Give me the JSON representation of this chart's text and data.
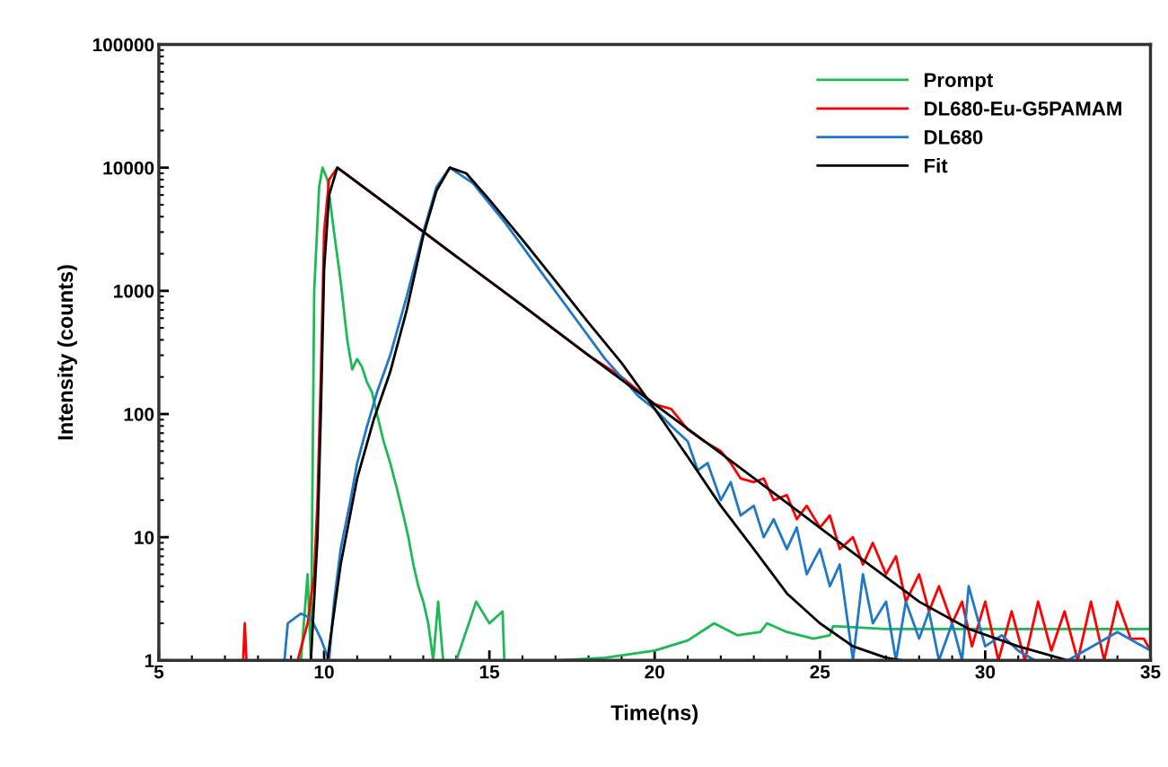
{
  "chart_data": {
    "type": "line",
    "xlabel": "Time(ns)",
    "ylabel": "Intensity (counts)",
    "log": "y",
    "xlim": [
      5,
      35
    ],
    "ylim": [
      1,
      100000
    ],
    "xticks": [
      5,
      10,
      15,
      20,
      25,
      30,
      35
    ],
    "yticks": [
      1,
      10,
      100,
      1000,
      10000,
      100000
    ],
    "grid": false,
    "legend": "top right",
    "marker": "none",
    "line_style": "solid",
    "series": [
      {
        "name": "Prompt",
        "color": "#1db954",
        "x": [
          5,
          9.3,
          9.5,
          9.6,
          9.7,
          9.85,
          9.95,
          10.1,
          10.3,
          10.5,
          10.7,
          10.85,
          11.0,
          11.15,
          11.3,
          11.45,
          11.6,
          11.8,
          12.0,
          12.2,
          12.4,
          12.55,
          12.7,
          12.85,
          13.0,
          13.15,
          13.3,
          13.45,
          13.6,
          14.0,
          14.6,
          15.0,
          15.4,
          15.45,
          17.0,
          18.5,
          20.0,
          21.0,
          21.8,
          22.5,
          23.2,
          23.4,
          24.0,
          24.8,
          25.3,
          25.4,
          27.0,
          30.0,
          35.0
        ],
        "values": [
          1,
          1,
          5,
          1,
          1000,
          7000,
          10000,
          8000,
          3000,
          1200,
          400,
          230,
          280,
          240,
          180,
          150,
          100,
          60,
          40,
          25,
          15,
          10,
          6,
          4,
          3,
          2,
          1,
          3,
          1,
          1,
          3,
          2,
          2.5,
          1,
          1,
          1.05,
          1.2,
          1.45,
          2,
          1.6,
          1.7,
          2,
          1.7,
          1.5,
          1.6,
          1.9,
          1.8,
          1.8,
          1.8
        ]
      },
      {
        "name": "DL680-Eu-G5PAMAM",
        "color": "#ff0000",
        "x": [
          5,
          7.55,
          7.6,
          7.65,
          9.2,
          9.5,
          9.7,
          9.8,
          9.9,
          10.0,
          10.15,
          10.4,
          12.0,
          14.0,
          16.0,
          18.0,
          19.0,
          20.0,
          20.5,
          21.0,
          21.5,
          22.0,
          22.3,
          22.6,
          23.0,
          23.3,
          23.6,
          24.0,
          24.3,
          24.6,
          25.0,
          25.3,
          25.6,
          26.0,
          26.3,
          26.6,
          27.0,
          27.3,
          27.6,
          28.0,
          28.3,
          28.6,
          29.0,
          29.3,
          29.6,
          30.0,
          30.4,
          30.8,
          31.2,
          31.6,
          32.0,
          32.4,
          32.8,
          33.2,
          33.6,
          34.0,
          34.4,
          34.8,
          35.0
        ],
        "values": [
          1,
          1,
          2,
          1,
          1,
          2,
          5,
          20,
          200,
          3000,
          8000,
          10000,
          4800,
          1900,
          760,
          300,
          200,
          120,
          110,
          75,
          60,
          50,
          40,
          30,
          28,
          30,
          20,
          22,
          14,
          18,
          12,
          15,
          8,
          10,
          6,
          9,
          5,
          7,
          3,
          5,
          2.5,
          4,
          2,
          3,
          1.3,
          3,
          1,
          2.5,
          1,
          3,
          1.2,
          2.5,
          1,
          3,
          1,
          3,
          1.5,
          1.5,
          1.2
        ]
      },
      {
        "name": "DL680",
        "color": "#1f77c8",
        "x": [
          8.8,
          8.9,
          9.3,
          9.6,
          9.9,
          10.15,
          10.3,
          10.5,
          10.8,
          11.0,
          11.3,
          11.6,
          12.0,
          12.5,
          13.0,
          13.4,
          13.8,
          14.5,
          15.5,
          16.5,
          17.5,
          18.5,
          19.5,
          20.0,
          20.5,
          21.0,
          21.3,
          21.6,
          22.0,
          22.3,
          22.6,
          23.0,
          23.3,
          23.6,
          24.0,
          24.3,
          24.6,
          25.0,
          25.3,
          25.6,
          26.0,
          26.3,
          26.6,
          27.0,
          27.3,
          27.6,
          28.0,
          28.3,
          28.6,
          29.0,
          29.3,
          29.5,
          30.0,
          30.5,
          31.0,
          31.5,
          32.5,
          34.0,
          35.0
        ],
        "values": [
          1,
          2,
          2.4,
          2.2,
          1.5,
          1,
          3,
          8,
          20,
          40,
          80,
          150,
          300,
          900,
          3000,
          7000,
          10000,
          7500,
          3500,
          1500,
          650,
          280,
          140,
          110,
          80,
          60,
          35,
          40,
          20,
          28,
          15,
          18,
          10,
          14,
          8,
          12,
          5,
          8,
          4,
          6,
          1,
          5,
          2,
          3,
          1,
          3,
          1.5,
          2.5,
          1,
          2,
          1,
          4,
          1.3,
          1.6,
          1.2,
          1,
          1,
          1.7,
          1.2
        ]
      },
      {
        "name": "Fit",
        "color": "#000000",
        "x": [
          9.6,
          9.8,
          9.9,
          10.0,
          10.15,
          10.4,
          12.0,
          14.0,
          16.0,
          18.0,
          20.0,
          22.0,
          24.0,
          26.0,
          28.0,
          29.5,
          31.0,
          32.5,
          35.0
        ],
        "values": [
          1,
          10,
          100,
          1500,
          6000,
          10000,
          4800,
          1900,
          760,
          300,
          120,
          48,
          19,
          7.5,
          3,
          1.8,
          1.3,
          1,
          1
        ]
      },
      {
        "color": "#000000",
        "x": [
          10.1,
          10.5,
          11.0,
          11.5,
          12.0,
          12.5,
          13.0,
          13.4,
          13.8,
          14.3,
          15.0,
          16.0,
          17.0,
          18.0,
          19.0,
          20.0,
          21.0,
          22.0,
          23.0,
          24.0,
          25.0,
          26.0,
          27.0,
          27.5,
          35.0
        ],
        "values": [
          1,
          6,
          30,
          90,
          220,
          700,
          2800,
          6500,
          10000,
          9000,
          5500,
          2600,
          1200,
          550,
          260,
          110,
          45,
          18,
          8,
          3.5,
          2,
          1.3,
          1.05,
          1,
          1
        ]
      }
    ]
  }
}
